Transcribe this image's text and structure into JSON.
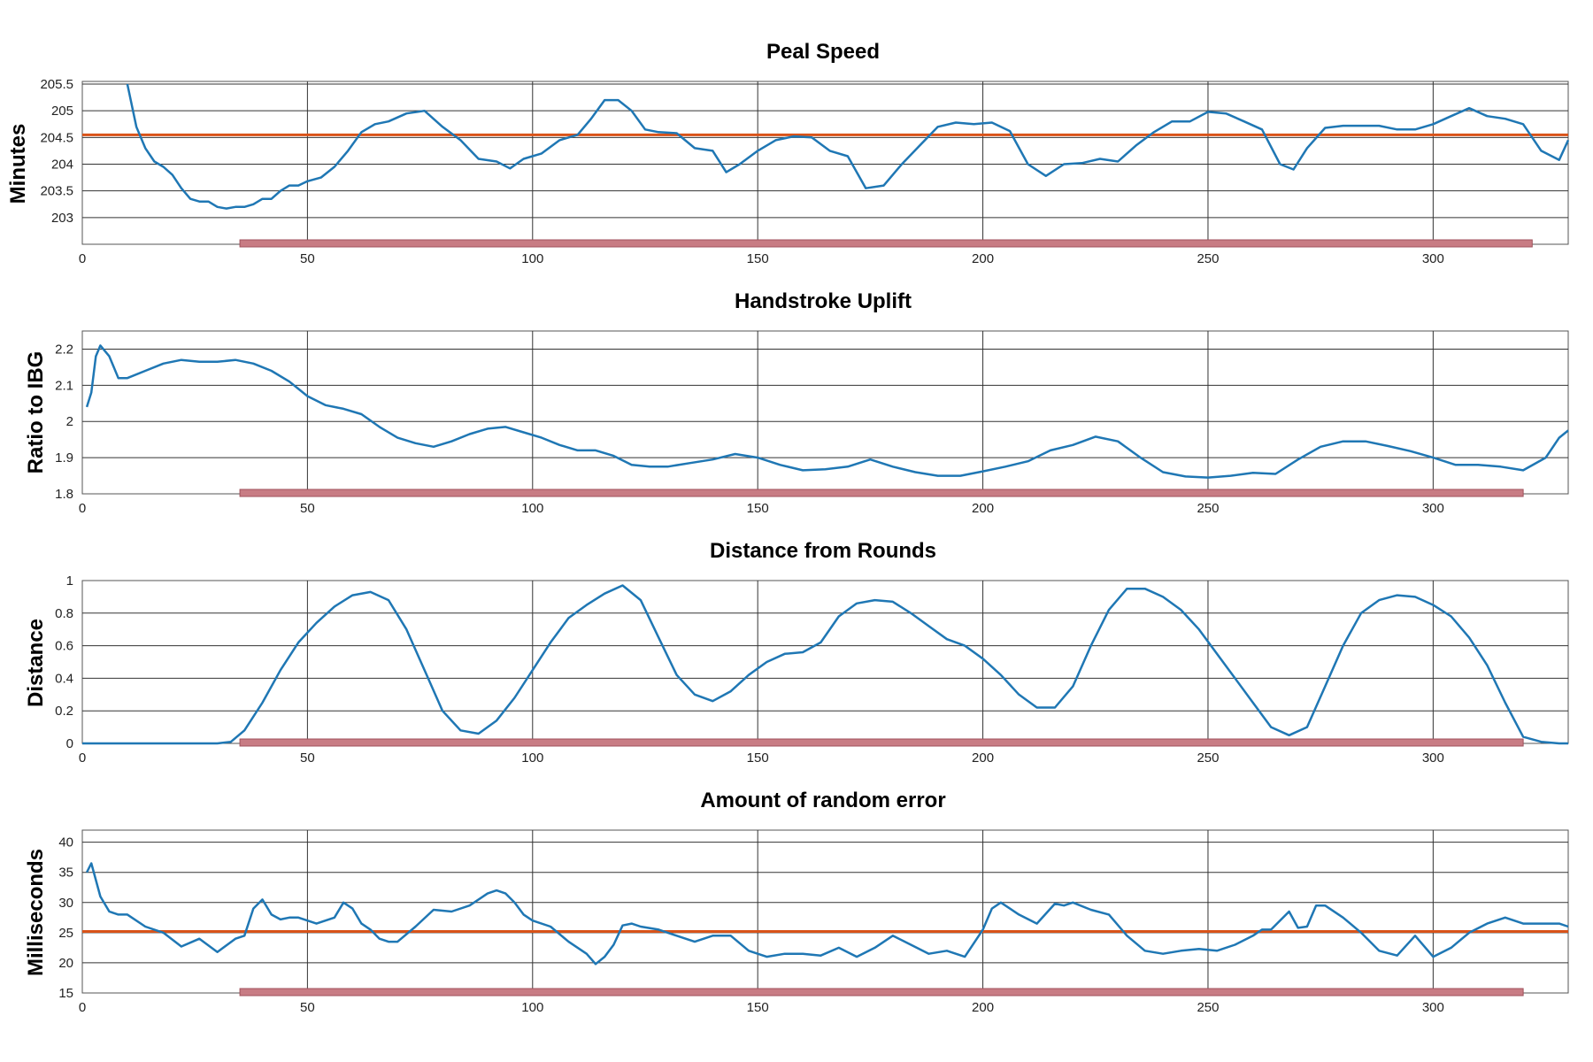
{
  "chart_data": [
    {
      "type": "line",
      "title": "Peal Speed",
      "xlabel": "",
      "ylabel": "Minutes",
      "xlim": [
        0,
        330
      ],
      "ylim": [
        202.5,
        205.55
      ],
      "x_ticks": [
        0,
        50,
        100,
        150,
        200,
        250,
        300
      ],
      "y_ticks": [
        203,
        203.5,
        204,
        204.5,
        205,
        205.5
      ],
      "y_tick_labels": [
        "203",
        "203.5",
        "204",
        "204.5",
        "205",
        "205.5"
      ],
      "grid": true,
      "highlight_range": [
        35,
        322
      ],
      "reference_line": 204.55,
      "colors": {
        "series": "#1f77b4",
        "reference": "#d95319",
        "highlight": "#c87c84"
      },
      "series": [
        {
          "x": [
            10,
            12,
            14,
            16,
            18,
            20,
            22,
            24,
            26,
            28,
            30,
            32,
            34,
            36,
            38,
            40,
            42,
            44,
            46,
            48,
            50,
            53,
            56,
            59,
            62,
            65,
            68,
            72,
            76,
            80,
            84,
            88,
            92,
            95,
            98,
            102,
            106,
            110,
            113,
            116,
            119,
            122,
            125,
            128,
            132,
            136,
            140,
            143,
            146,
            150,
            154,
            158,
            162,
            166,
            170,
            174,
            178,
            182,
            186,
            190,
            194,
            198,
            202,
            206,
            210,
            214,
            218,
            222,
            226,
            230,
            234,
            238,
            242,
            246,
            250,
            254,
            258,
            262,
            266,
            269,
            272,
            276,
            280,
            284,
            288,
            292,
            296,
            300,
            304,
            308,
            312,
            316,
            320,
            324,
            328,
            330
          ],
          "y": [
            205.5,
            204.7,
            204.3,
            204.05,
            203.95,
            203.8,
            203.55,
            203.35,
            203.3,
            203.3,
            203.2,
            203.17,
            203.2,
            203.2,
            203.25,
            203.35,
            203.35,
            203.5,
            203.6,
            203.6,
            203.68,
            203.75,
            203.95,
            204.25,
            204.6,
            204.75,
            204.8,
            204.95,
            205.0,
            204.7,
            204.45,
            204.1,
            204.05,
            203.92,
            204.1,
            204.2,
            204.45,
            204.55,
            204.85,
            205.2,
            205.2,
            205.0,
            204.65,
            204.6,
            204.58,
            204.3,
            204.25,
            203.85,
            204.0,
            204.25,
            204.45,
            204.52,
            204.5,
            204.25,
            204.15,
            203.55,
            203.6,
            204.0,
            204.35,
            204.7,
            204.78,
            204.75,
            204.78,
            204.62,
            204.0,
            203.78,
            204.0,
            204.02,
            204.1,
            204.05,
            204.35,
            204.6,
            204.8,
            204.8,
            204.98,
            204.95,
            204.8,
            204.65,
            204.0,
            203.9,
            204.3,
            204.68,
            204.72,
            204.72,
            204.72,
            204.65,
            204.65,
            204.75,
            204.9,
            205.05,
            204.9,
            204.85,
            204.75,
            204.25,
            204.08,
            204.45
          ]
        }
      ]
    },
    {
      "type": "line",
      "title": "Handstroke Uplift",
      "xlabel": "",
      "ylabel": "Ratio to IBG",
      "xlim": [
        0,
        330
      ],
      "ylim": [
        1.8,
        2.25
      ],
      "x_ticks": [
        0,
        50,
        100,
        150,
        200,
        250,
        300
      ],
      "y_ticks": [
        1.8,
        1.9,
        2,
        2.1,
        2.2
      ],
      "y_tick_labels": [
        "1.8",
        "1.9",
        "2",
        "2.1",
        "2.2"
      ],
      "grid": true,
      "highlight_range": [
        35,
        320
      ],
      "colors": {
        "series": "#1f77b4",
        "highlight": "#c87c84"
      },
      "series": [
        {
          "x": [
            1,
            2,
            3,
            4,
            6,
            8,
            10,
            14,
            18,
            22,
            26,
            30,
            34,
            38,
            42,
            46,
            50,
            54,
            58,
            62,
            66,
            70,
            74,
            78,
            82,
            86,
            90,
            94,
            98,
            102,
            106,
            110,
            114,
            118,
            122,
            126,
            130,
            135,
            140,
            145,
            150,
            155,
            160,
            165,
            170,
            175,
            180,
            185,
            190,
            195,
            200,
            205,
            210,
            215,
            220,
            225,
            230,
            235,
            240,
            245,
            250,
            255,
            260,
            265,
            270,
            275,
            280,
            285,
            290,
            295,
            300,
            305,
            310,
            315,
            320,
            325,
            328,
            330
          ],
          "y": [
            2.04,
            2.08,
            2.18,
            2.21,
            2.18,
            2.12,
            2.12,
            2.14,
            2.16,
            2.17,
            2.165,
            2.165,
            2.17,
            2.16,
            2.14,
            2.11,
            2.07,
            2.045,
            2.035,
            2.02,
            1.985,
            1.955,
            1.94,
            1.93,
            1.945,
            1.965,
            1.98,
            1.985,
            1.97,
            1.955,
            1.935,
            1.92,
            1.92,
            1.905,
            1.88,
            1.875,
            1.875,
            1.885,
            1.895,
            1.91,
            1.9,
            1.88,
            1.865,
            1.868,
            1.875,
            1.895,
            1.875,
            1.86,
            1.85,
            1.85,
            1.862,
            1.875,
            1.89,
            1.92,
            1.935,
            1.958,
            1.945,
            1.9,
            1.86,
            1.848,
            1.845,
            1.85,
            1.858,
            1.855,
            1.895,
            1.93,
            1.945,
            1.945,
            1.932,
            1.918,
            1.9,
            1.88,
            1.88,
            1.875,
            1.865,
            1.9,
            1.955,
            1.975
          ]
        }
      ]
    },
    {
      "type": "line",
      "title": "Distance from Rounds",
      "xlabel": "",
      "ylabel": "Distance",
      "xlim": [
        0,
        330
      ],
      "ylim": [
        0,
        1.0
      ],
      "x_ticks": [
        0,
        50,
        100,
        150,
        200,
        250,
        300
      ],
      "y_ticks": [
        0,
        0.2,
        0.4,
        0.6,
        0.8,
        1
      ],
      "y_tick_labels": [
        "0",
        "0.2",
        "0.4",
        "0.6",
        "0.8",
        "1"
      ],
      "grid": true,
      "highlight_range": [
        35,
        320
      ],
      "colors": {
        "series": "#1f77b4",
        "highlight": "#c87c84"
      },
      "series": [
        {
          "x": [
            0,
            10,
            20,
            30,
            33,
            36,
            40,
            44,
            48,
            52,
            56,
            60,
            64,
            68,
            72,
            76,
            80,
            84,
            88,
            92,
            96,
            100,
            104,
            108,
            112,
            116,
            120,
            124,
            128,
            132,
            136,
            140,
            144,
            148,
            152,
            156,
            160,
            164,
            168,
            172,
            176,
            180,
            184,
            188,
            192,
            196,
            200,
            204,
            208,
            212,
            216,
            220,
            224,
            228,
            232,
            236,
            240,
            244,
            248,
            252,
            256,
            260,
            264,
            268,
            272,
            276,
            280,
            284,
            288,
            292,
            296,
            300,
            304,
            308,
            312,
            316,
            320,
            324,
            328,
            330
          ],
          "y": [
            0,
            0,
            0,
            0,
            0.01,
            0.08,
            0.25,
            0.45,
            0.62,
            0.74,
            0.84,
            0.91,
            0.93,
            0.88,
            0.7,
            0.45,
            0.2,
            0.08,
            0.06,
            0.14,
            0.28,
            0.45,
            0.62,
            0.77,
            0.85,
            0.92,
            0.97,
            0.88,
            0.65,
            0.42,
            0.3,
            0.26,
            0.32,
            0.42,
            0.5,
            0.55,
            0.56,
            0.62,
            0.78,
            0.86,
            0.88,
            0.87,
            0.8,
            0.72,
            0.64,
            0.6,
            0.52,
            0.42,
            0.3,
            0.22,
            0.22,
            0.35,
            0.6,
            0.82,
            0.95,
            0.95,
            0.9,
            0.82,
            0.7,
            0.55,
            0.4,
            0.25,
            0.1,
            0.05,
            0.1,
            0.35,
            0.6,
            0.8,
            0.88,
            0.91,
            0.9,
            0.85,
            0.78,
            0.65,
            0.48,
            0.25,
            0.04,
            0.01,
            0,
            0
          ]
        }
      ]
    },
    {
      "type": "line",
      "title": "Amount of random error",
      "xlabel": "",
      "ylabel": "Milliseconds",
      "xlim": [
        0,
        330
      ],
      "ylim": [
        15,
        42
      ],
      "x_ticks": [
        0,
        50,
        100,
        150,
        200,
        250,
        300
      ],
      "y_ticks": [
        15,
        20,
        25,
        30,
        35,
        40
      ],
      "y_tick_labels": [
        "15",
        "20",
        "25",
        "30",
        "35",
        "40"
      ],
      "grid": true,
      "highlight_range": [
        35,
        320
      ],
      "reference_line": 25.2,
      "colors": {
        "series": "#1f77b4",
        "reference": "#d95319",
        "highlight": "#c87c84"
      },
      "series": [
        {
          "x": [
            1,
            2,
            4,
            6,
            8,
            10,
            14,
            18,
            22,
            26,
            30,
            34,
            36,
            38,
            40,
            42,
            44,
            46,
            48,
            52,
            56,
            58,
            60,
            62,
            64,
            66,
            68,
            70,
            74,
            78,
            82,
            86,
            90,
            92,
            94,
            96,
            98,
            100,
            104,
            108,
            112,
            114,
            116,
            118,
            120,
            122,
            124,
            128,
            132,
            136,
            140,
            144,
            148,
            152,
            156,
            160,
            164,
            168,
            172,
            176,
            180,
            184,
            188,
            192,
            196,
            200,
            202,
            204,
            208,
            212,
            216,
            218,
            220,
            224,
            228,
            232,
            236,
            240,
            244,
            248,
            252,
            256,
            260,
            262,
            264,
            268,
            270,
            272,
            274,
            276,
            280,
            284,
            288,
            292,
            296,
            300,
            304,
            308,
            312,
            316,
            320,
            324,
            328,
            330
          ],
          "y": [
            35,
            36.5,
            31,
            28.5,
            28,
            28,
            26,
            25,
            22.7,
            24,
            21.8,
            24,
            24.5,
            29,
            30.5,
            28,
            27.2,
            27.5,
            27.5,
            26.5,
            27.5,
            30,
            29,
            26.5,
            25.5,
            24,
            23.5,
            23.5,
            26,
            28.8,
            28.5,
            29.5,
            31.5,
            32,
            31.5,
            30,
            28,
            27,
            26,
            23.5,
            21.5,
            19.8,
            21,
            23,
            26.2,
            26.5,
            26,
            25.5,
            24.5,
            23.5,
            24.5,
            24.5,
            22,
            21,
            21.5,
            21.5,
            21.2,
            22.5,
            21,
            22.5,
            24.5,
            23,
            21.5,
            22,
            21,
            25.5,
            29,
            30,
            28,
            26.5,
            29.8,
            29.5,
            30,
            28.8,
            28,
            24.5,
            22,
            21.5,
            22,
            22.3,
            22,
            23,
            24.5,
            25.5,
            25.5,
            28.5,
            25.8,
            26,
            29.5,
            29.5,
            27.5,
            25,
            22,
            21.2,
            24.5,
            21,
            22.5,
            25,
            26.5,
            27.5,
            26.5,
            26.5,
            26.5,
            26
          ]
        }
      ]
    }
  ]
}
